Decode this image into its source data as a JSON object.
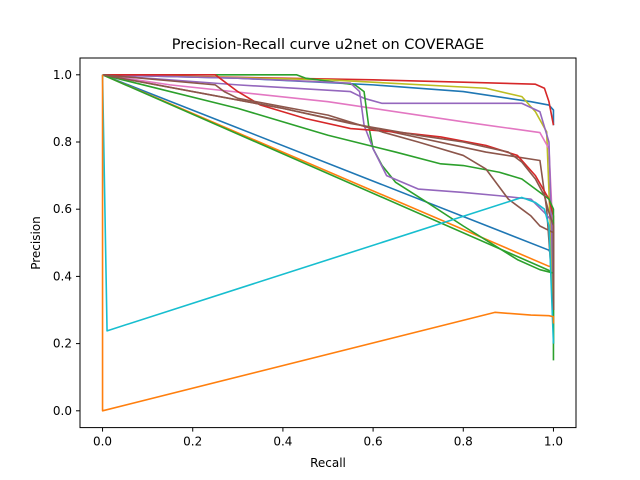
{
  "chart_data": {
    "type": "line",
    "title": "Precision-Recall curve u2net on COVERAGE",
    "xlabel": "Recall",
    "ylabel": "Precision",
    "xlim": [
      -0.05,
      1.05
    ],
    "ylim": [
      -0.05,
      1.05
    ],
    "xticks": [
      0.0,
      0.2,
      0.4,
      0.6,
      0.8,
      1.0
    ],
    "xtick_labels": [
      "0.0",
      "0.2",
      "0.4",
      "0.6",
      "0.8",
      "1.0"
    ],
    "yticks": [
      0.0,
      0.2,
      0.4,
      0.6,
      0.8,
      1.0
    ],
    "ytick_labels": [
      "0.0",
      "0.2",
      "0.4",
      "0.6",
      "0.8",
      "1.0"
    ],
    "grid": false,
    "legend": "none",
    "series": [
      {
        "color": "#1f77b4",
        "points": [
          [
            0,
            1.0
          ],
          [
            0.99,
            0.478
          ],
          [
            1.0,
            0.45
          ]
        ]
      },
      {
        "color": "#ff7f0e",
        "points": [
          [
            0,
            1.0
          ],
          [
            0.99,
            0.43
          ],
          [
            1.0,
            0.43
          ]
        ]
      },
      {
        "color": "#2ca02c",
        "points": [
          [
            0,
            1.0
          ],
          [
            0.99,
            0.418
          ],
          [
            1.0,
            0.4
          ]
        ]
      },
      {
        "color": "#8c564b",
        "points": [
          [
            0,
            1.0
          ],
          [
            0.4,
            0.9
          ],
          [
            0.85,
            0.77
          ],
          [
            0.97,
            0.745
          ],
          [
            0.985,
            0.6
          ],
          [
            1.0,
            0.32
          ]
        ]
      },
      {
        "color": "#1f77b4",
        "points": [
          [
            0,
            1.0
          ],
          [
            0.3,
            0.99
          ],
          [
            0.6,
            0.97
          ],
          [
            0.8,
            0.95
          ],
          [
            0.95,
            0.92
          ],
          [
            0.99,
            0.91
          ],
          [
            1.0,
            0.895
          ],
          [
            1.0,
            0.85
          ]
        ]
      },
      {
        "color": "#d62728",
        "points": [
          [
            0,
            1.0
          ],
          [
            0.6,
            0.985
          ],
          [
            0.8,
            0.978
          ],
          [
            0.96,
            0.972
          ],
          [
            0.98,
            0.96
          ],
          [
            0.99,
            0.92
          ],
          [
            1.0,
            0.85
          ]
        ]
      },
      {
        "color": "#bcbd22",
        "points": [
          [
            0,
            1.0
          ],
          [
            0.5,
            0.985
          ],
          [
            0.85,
            0.96
          ],
          [
            0.93,
            0.935
          ],
          [
            0.96,
            0.89
          ],
          [
            0.985,
            0.83
          ],
          [
            1.0,
            0.3
          ]
        ]
      },
      {
        "color": "#e377c2",
        "points": [
          [
            0,
            1.0
          ],
          [
            0.15,
            0.97
          ],
          [
            0.5,
            0.92
          ],
          [
            0.8,
            0.86
          ],
          [
            0.97,
            0.828
          ],
          [
            0.99,
            0.78
          ],
          [
            1.0,
            0.5
          ]
        ]
      },
      {
        "color": "#9467bd",
        "points": [
          [
            0,
            1.0
          ],
          [
            0.3,
            0.97
          ],
          [
            0.55,
            0.95
          ],
          [
            0.58,
            0.93
          ],
          [
            0.62,
            0.915
          ],
          [
            0.8,
            0.915
          ],
          [
            0.93,
            0.915
          ],
          [
            0.97,
            0.89
          ],
          [
            0.99,
            0.8
          ],
          [
            1.0,
            0.35
          ]
        ]
      },
      {
        "color": "#2ca02c",
        "points": [
          [
            0,
            1.0
          ],
          [
            0.43,
            1.0
          ],
          [
            0.45,
            0.99
          ],
          [
            0.56,
            0.97
          ],
          [
            0.58,
            0.95
          ],
          [
            0.59,
            0.85
          ],
          [
            0.6,
            0.78
          ],
          [
            0.62,
            0.73
          ],
          [
            0.65,
            0.68
          ],
          [
            0.72,
            0.62
          ],
          [
            0.8,
            0.55
          ],
          [
            0.86,
            0.5
          ],
          [
            0.92,
            0.45
          ],
          [
            0.97,
            0.42
          ],
          [
            1.0,
            0.41
          ],
          [
            1.0,
            0.15
          ]
        ]
      },
      {
        "color": "#9467bd",
        "points": [
          [
            0,
            1.0
          ],
          [
            0.3,
            0.99
          ],
          [
            0.55,
            0.975
          ],
          [
            0.57,
            0.95
          ],
          [
            0.58,
            0.85
          ],
          [
            0.6,
            0.78
          ],
          [
            0.63,
            0.7
          ],
          [
            0.7,
            0.66
          ],
          [
            0.8,
            0.65
          ],
          [
            0.88,
            0.64
          ],
          [
            0.95,
            0.63
          ],
          [
            0.98,
            0.59
          ],
          [
            1.0,
            0.56
          ],
          [
            1.0,
            0.4
          ]
        ]
      },
      {
        "color": "#d62728",
        "points": [
          [
            0,
            1.0
          ],
          [
            0.25,
            1.0
          ],
          [
            0.3,
            0.95
          ],
          [
            0.35,
            0.91
          ],
          [
            0.45,
            0.87
          ],
          [
            0.55,
            0.84
          ],
          [
            0.65,
            0.83
          ],
          [
            0.75,
            0.815
          ],
          [
            0.85,
            0.79
          ],
          [
            0.92,
            0.76
          ],
          [
            0.96,
            0.7
          ],
          [
            0.99,
            0.63
          ],
          [
            1.0,
            0.58
          ],
          [
            1.0,
            0.3
          ]
        ]
      },
      {
        "color": "#2ca02c",
        "points": [
          [
            0,
            1.0
          ],
          [
            0.3,
            0.9
          ],
          [
            0.5,
            0.82
          ],
          [
            0.65,
            0.77
          ],
          [
            0.75,
            0.735
          ],
          [
            0.8,
            0.73
          ],
          [
            0.88,
            0.71
          ],
          [
            0.93,
            0.69
          ],
          [
            0.97,
            0.65
          ],
          [
            0.99,
            0.63
          ],
          [
            1.0,
            0.6
          ],
          [
            1.0,
            0.2
          ]
        ]
      },
      {
        "color": "#8c564b",
        "points": [
          [
            0,
            1.0
          ],
          [
            0.4,
            0.9
          ],
          [
            0.55,
            0.855
          ],
          [
            0.7,
            0.82
          ],
          [
            0.8,
            0.8
          ],
          [
            0.9,
            0.77
          ],
          [
            0.93,
            0.74
          ],
          [
            0.96,
            0.69
          ],
          [
            0.98,
            0.64
          ],
          [
            0.99,
            0.59
          ],
          [
            1.0,
            0.55
          ],
          [
            1.0,
            0.3
          ]
        ]
      },
      {
        "color": "#8c564b",
        "points": [
          [
            0,
            1.0
          ],
          [
            0.25,
            0.97
          ],
          [
            0.27,
            0.95
          ],
          [
            0.3,
            0.93
          ],
          [
            0.5,
            0.88
          ],
          [
            0.62,
            0.83
          ],
          [
            0.7,
            0.8
          ],
          [
            0.8,
            0.76
          ],
          [
            0.85,
            0.72
          ],
          [
            0.9,
            0.63
          ],
          [
            0.93,
            0.6
          ],
          [
            0.95,
            0.58
          ],
          [
            0.97,
            0.55
          ],
          [
            1.0,
            0.53
          ],
          [
            1.0,
            0.3
          ]
        ]
      },
      {
        "color": "#17becf",
        "points": [
          [
            0,
            1.0
          ],
          [
            0.01,
            0.238
          ],
          [
            0.93,
            0.635
          ],
          [
            0.96,
            0.62
          ],
          [
            0.98,
            0.6
          ],
          [
            0.99,
            0.55
          ],
          [
            1.0,
            0.2
          ]
        ]
      },
      {
        "color": "#ff7f0e",
        "points": [
          [
            0,
            1.0
          ],
          [
            0,
            0.0
          ],
          [
            0.87,
            0.293
          ],
          [
            0.95,
            0.285
          ],
          [
            0.99,
            0.283
          ],
          [
            1.0,
            0.28
          ],
          [
            1.0,
            0.26
          ]
        ]
      }
    ]
  }
}
